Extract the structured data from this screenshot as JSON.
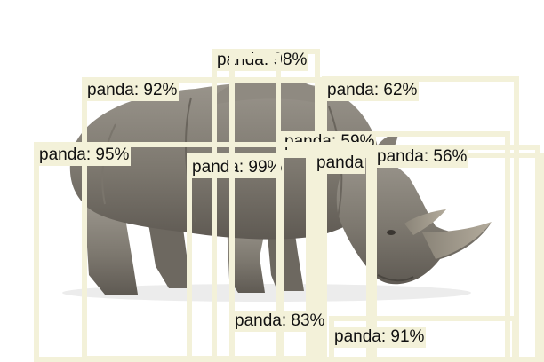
{
  "image": {
    "subject": "rhinoceros-photo",
    "background_color": "#ffffff",
    "box_color": "#f3f1d9",
    "label_text_color": "#111111"
  },
  "detections": [
    {
      "label": "panda: 98%"
    },
    {
      "label": "panda: 92%"
    },
    {
      "label": "panda: 62%"
    },
    {
      "label": "panda: 59%"
    },
    {
      "label": "panda: 95%"
    },
    {
      "label": "panda: 99%"
    },
    {
      "label": "panda"
    },
    {
      "label": "panda: 56%"
    },
    {
      "label": "panda: 83%"
    },
    {
      "label": "panda: 91%"
    }
  ]
}
